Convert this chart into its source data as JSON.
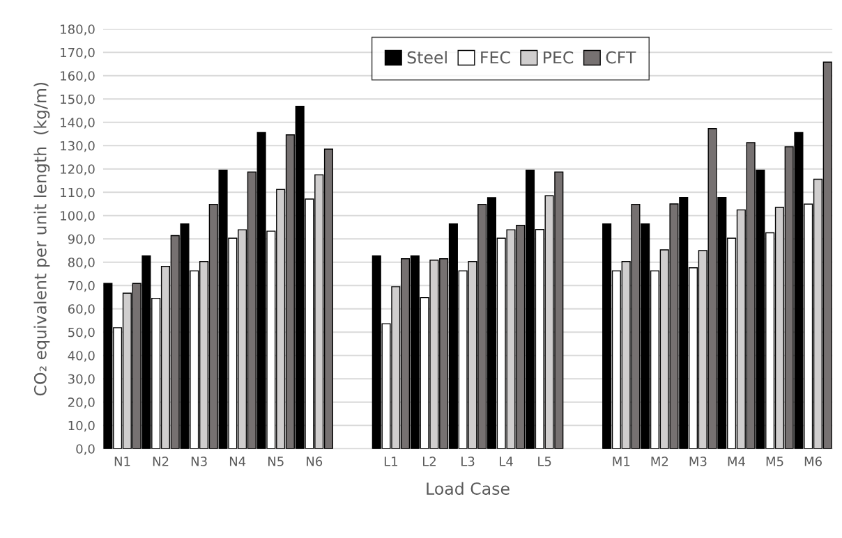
{
  "chart_data": {
    "type": "bar",
    "xlabel": "Load Case",
    "ylabel": "CO₂ equivalent per unit length  (kg/m)",
    "categories": [
      "N1",
      "N2",
      "N3",
      "N4",
      "N5",
      "N6",
      null,
      "L1",
      "L2",
      "L3",
      "L4",
      "L5",
      null,
      "M1",
      "M2",
      "M3",
      "M4",
      "M5",
      "M6"
    ],
    "series": [
      {
        "name": "Steel",
        "color": "#000000",
        "values": [
          70.9,
          82.7,
          96.4,
          119.5,
          135.6,
          146.9,
          null,
          82.7,
          82.7,
          96.4,
          107.7,
          119.5,
          null,
          96.4,
          96.4,
          107.8,
          107.8,
          119.5,
          135.6
        ]
      },
      {
        "name": "FEC",
        "color": "#ffffff",
        "values": [
          51.9,
          64.5,
          76.3,
          90.3,
          93.3,
          107.1,
          null,
          53.6,
          64.8,
          76.3,
          90.3,
          94.0,
          null,
          76.3,
          76.3,
          77.6,
          90.3,
          92.6,
          104.9
        ]
      },
      {
        "name": "PEC",
        "color": "#d0cece",
        "values": [
          66.7,
          78.2,
          80.3,
          93.9,
          111.2,
          117.5,
          null,
          69.5,
          80.9,
          80.3,
          93.9,
          108.5,
          null,
          80.3,
          85.3,
          85.0,
          102.4,
          103.5,
          115.6
        ]
      },
      {
        "name": "CFT",
        "color": "#767171",
        "values": [
          70.9,
          91.4,
          104.8,
          118.7,
          134.6,
          128.5,
          null,
          81.5,
          81.5,
          104.8,
          95.8,
          118.7,
          null,
          104.8,
          105.0,
          137.3,
          131.3,
          129.5,
          165.8
        ]
      }
    ],
    "ylim": [
      0,
      180
    ],
    "yticks": [
      {
        "value": 0,
        "label": "0,0"
      },
      {
        "value": 10,
        "label": "10,0"
      },
      {
        "value": 20,
        "label": "20,0"
      },
      {
        "value": 30,
        "label": "30,0"
      },
      {
        "value": 40,
        "label": "40,0"
      },
      {
        "value": 50,
        "label": "50,0"
      },
      {
        "value": 60,
        "label": "60,0"
      },
      {
        "value": 70,
        "label": "70,0"
      },
      {
        "value": 80,
        "label": "80,0"
      },
      {
        "value": 90,
        "label": "90,0"
      },
      {
        "value": 100,
        "label": "100,0"
      },
      {
        "value": 110,
        "label": "110,0"
      },
      {
        "value": 120,
        "label": "120,0"
      },
      {
        "value": 130,
        "label": "130,0"
      },
      {
        "value": 140,
        "label": "140,0"
      },
      {
        "value": 150,
        "label": "150,0"
      },
      {
        "value": 160,
        "label": "160,0"
      },
      {
        "value": 170,
        "label": "170,0"
      },
      {
        "value": 180,
        "label": "180,0"
      }
    ],
    "grid": "y",
    "legend": "top right"
  }
}
